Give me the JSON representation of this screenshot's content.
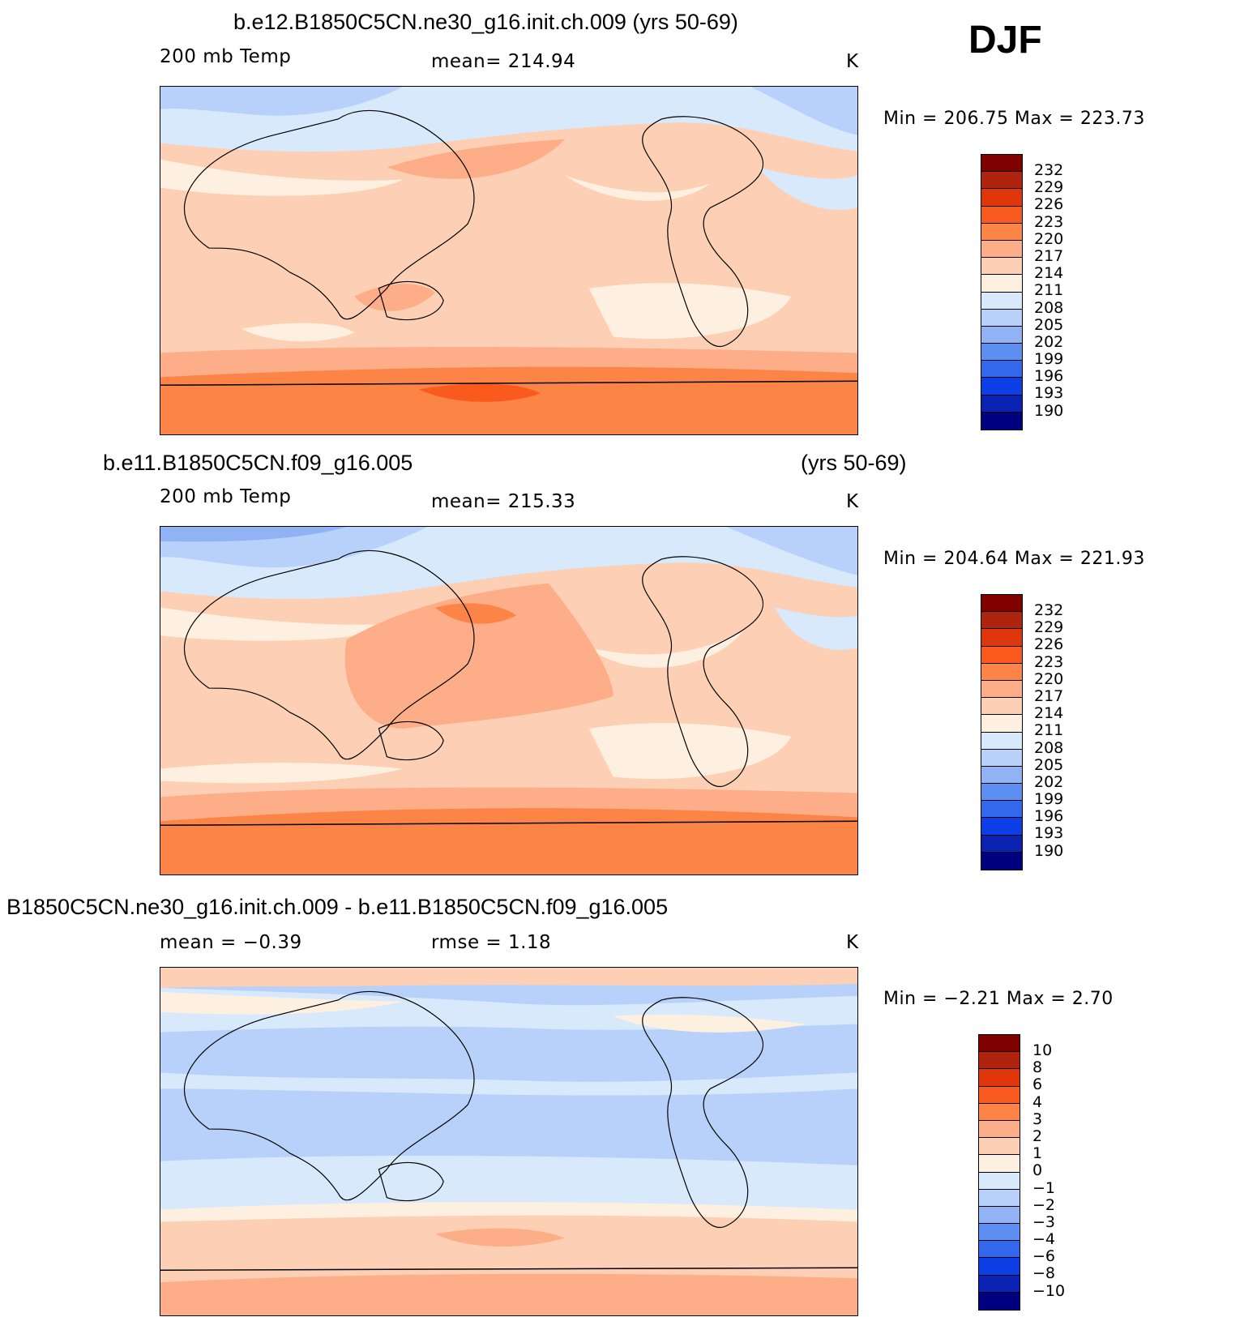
{
  "season": "DJF",
  "panels": [
    {
      "title": "b.e12.B1850C5CN.ne30_g16.init.ch.009 (yrs 50-69)",
      "title_right": "",
      "left_label": "200 mb Temp",
      "center_label": "mean=  214.94",
      "units": "K",
      "minmax": "Min  =  206.75  Max  =  223.73",
      "colorbar_labels": [
        "232",
        "229",
        "226",
        "223",
        "220",
        "217",
        "214",
        "211",
        "208",
        "205",
        "202",
        "199",
        "196",
        "193",
        "190"
      ]
    },
    {
      "title": "b.e11.B1850C5CN.f09_g16.005",
      "title_right": "(yrs 50-69)",
      "left_label": "200 mb Temp",
      "center_label": "mean=  215.33",
      "units": "K",
      "minmax": "Min  =  204.64  Max  =  221.93",
      "colorbar_labels": [
        "232",
        "229",
        "226",
        "223",
        "220",
        "217",
        "214",
        "211",
        "208",
        "205",
        "202",
        "199",
        "196",
        "193",
        "190"
      ]
    },
    {
      "title": "B1850C5CN.ne30_g16.init.ch.009 - b.e11.B1850C5CN.f09_g16.005",
      "title_right": "",
      "left_label": "mean  =    −0.39",
      "center_label": "rmse  =     1.18",
      "units": "K",
      "minmax": "Min  =    −2.21  Max  =     2.70",
      "colorbar_labels": [
        "10",
        "8",
        "6",
        "4",
        "3",
        "2",
        "1",
        "0",
        "−1",
        "−2",
        "−3",
        "−4",
        "−6",
        "−8",
        "−10"
      ]
    }
  ],
  "colors": {
    "scale": [
      "#800000",
      "#b0230e",
      "#e0360c",
      "#fb5a1f",
      "#fc8446",
      "#fdae88",
      "#fdd0b5",
      "#fef0e0",
      "#d8e9fb",
      "#b7d1fa",
      "#91b3f5",
      "#5e8ff2",
      "#3267ee",
      "#0d3ee6",
      "#0a23b2",
      "#000080"
    ]
  }
}
